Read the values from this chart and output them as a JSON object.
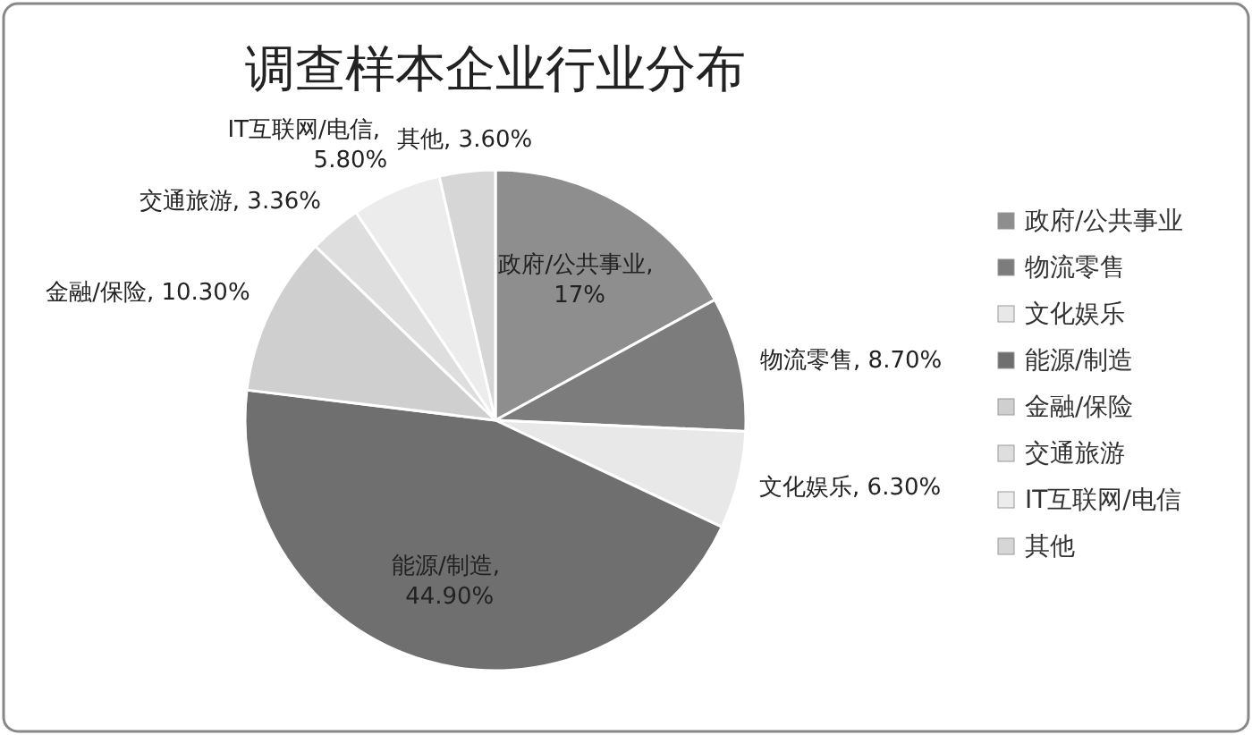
{
  "chart_data": {
    "type": "pie",
    "title": "调查样本企业行业分布",
    "categories": [
      "政府/公共事业",
      "物流零售",
      "文化娱乐",
      "能源/制造",
      "金融/保险",
      "交通旅游",
      "IT互联网/电信",
      "其他"
    ],
    "values": [
      17,
      8.7,
      6.3,
      44.9,
      10.3,
      3.36,
      5.8,
      3.6
    ],
    "value_labels": [
      "政府/公共事业, 17%",
      "物流零售, 8.70%",
      "文化娱乐, 6.30%",
      "能源/制造, 44.90%",
      "金融/保险, 10.30%",
      "交通旅游, 3.36%",
      "IT互联网/电信, 5.80%",
      "其他, 3.60%"
    ],
    "colors": [
      "#8e8e8e",
      "#7c7c7c",
      "#e8e8e8",
      "#6f6f6f",
      "#cfcfcf",
      "#dedede",
      "#ececec",
      "#d6d6d6"
    ],
    "legend": "right"
  }
}
